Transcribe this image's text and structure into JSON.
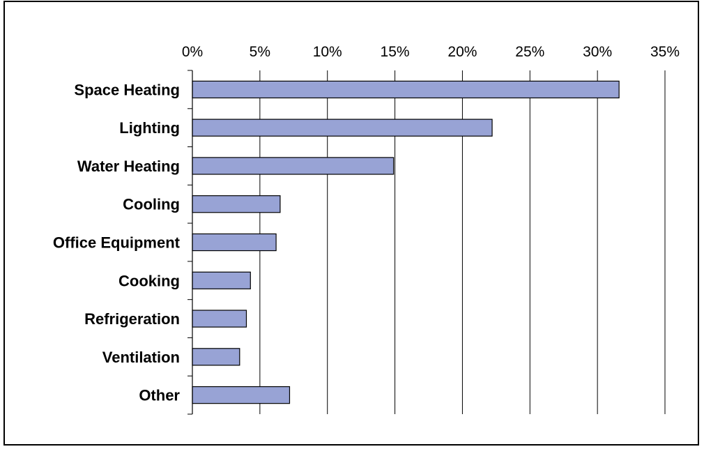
{
  "chart_data": {
    "type": "bar",
    "orientation": "horizontal",
    "title": "",
    "xlabel": "",
    "ylabel": "",
    "categories": [
      "Space Heating",
      "Lighting",
      "Water Heating",
      "Cooling",
      "Office Equipment",
      "Cooking",
      "Refrigeration",
      "Ventilation",
      "Other"
    ],
    "values": [
      0.316,
      0.222,
      0.149,
      0.065,
      0.062,
      0.043,
      0.04,
      0.035,
      0.072
    ],
    "xlim": [
      0,
      0.35
    ],
    "ticks": [
      0,
      0.05,
      0.1,
      0.15,
      0.2,
      0.25,
      0.3,
      0.35
    ],
    "tick_labels": [
      "0%",
      "5%",
      "10%",
      "15%",
      "20%",
      "25%",
      "30%",
      "35%"
    ],
    "x_axis_position": "top",
    "grid": true,
    "bar_color": "#98a3d5",
    "bar_edge_color": "#000000",
    "legend": "none"
  }
}
